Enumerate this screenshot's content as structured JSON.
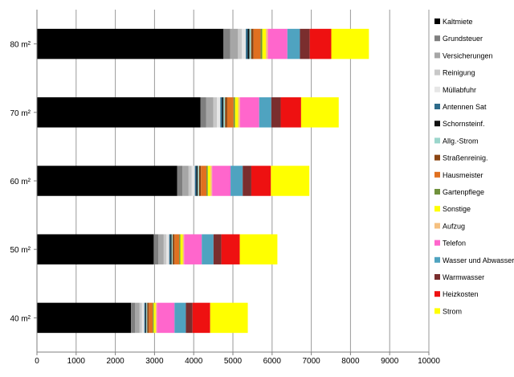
{
  "chart_data": {
    "type": "bar",
    "orientation": "horizontal",
    "stacked": true,
    "title": "",
    "xlabel": "",
    "ylabel": "",
    "xlim": [
      0,
      10000
    ],
    "x_ticks": [
      "0",
      "1000",
      "2000",
      "3000",
      "4000",
      "5000",
      "6000",
      "7000",
      "8000",
      "9000",
      "10000"
    ],
    "x_tick_values": [
      0,
      1000,
      2000,
      3000,
      4000,
      5000,
      6000,
      7000,
      8000,
      9000,
      10000
    ],
    "grid": "vertical",
    "legend_position": "right",
    "categories": [
      "40 m²",
      "50 m²",
      "60 m²",
      "70 m²",
      "80 m²"
    ],
    "series": [
      {
        "name": "Kaltmiete",
        "color": "#000000",
        "values": [
          2400,
          2980,
          3580,
          4170,
          4760
        ]
      },
      {
        "name": "Grundsteuer",
        "color": "#7f7f7f",
        "values": [
          100,
          115,
          130,
          150,
          170
        ]
      },
      {
        "name": "Versicherungen",
        "color": "#a6a6a6",
        "values": [
          120,
          140,
          160,
          180,
          200
        ]
      },
      {
        "name": "Reinigung",
        "color": "#c8c8c8",
        "values": [
          60,
          70,
          80,
          90,
          100
        ]
      },
      {
        "name": "Müllabfuhr",
        "color": "#e6e6e6",
        "values": [
          60,
          70,
          80,
          90,
          100
        ]
      },
      {
        "name": "Antennen Sat",
        "color": "#2e6b8a",
        "values": [
          30,
          35,
          40,
          45,
          50
        ]
      },
      {
        "name": "Schornsteinf.",
        "color": "#101010",
        "values": [
          20,
          25,
          30,
          35,
          40
        ]
      },
      {
        "name": "Allg.-Strom",
        "color": "#9bd6cc",
        "values": [
          25,
          30,
          35,
          40,
          45
        ]
      },
      {
        "name": "Straßenreinig.",
        "color": "#8b4513",
        "values": [
          40,
          45,
          50,
          55,
          60
        ]
      },
      {
        "name": "Hausmeister",
        "color": "#e07020",
        "values": [
          100,
          120,
          140,
          160,
          180
        ]
      },
      {
        "name": "Gartenpflege",
        "color": "#70913c",
        "values": [
          25,
          30,
          35,
          40,
          45
        ]
      },
      {
        "name": "Sonstige",
        "color": "#ffff00",
        "values": [
          50,
          60,
          70,
          80,
          90
        ]
      },
      {
        "name": "Aufzug",
        "color": "#f5c080",
        "values": [
          30,
          35,
          40,
          45,
          50
        ]
      },
      {
        "name": "Telefon",
        "color": "#ff66cc",
        "values": [
          450,
          450,
          470,
          490,
          500
        ]
      },
      {
        "name": "Wasser und Abwasser",
        "color": "#4fa3c0",
        "values": [
          290,
          300,
          310,
          310,
          320
        ]
      },
      {
        "name": "Warmwasser",
        "color": "#7a2e2e",
        "values": [
          170,
          200,
          220,
          240,
          250
        ]
      },
      {
        "name": "Heizkosten",
        "color": "#ee1111",
        "values": [
          450,
          470,
          500,
          520,
          550
        ]
      },
      {
        "name": "Strom",
        "color": "#ffff00",
        "values": [
          960,
          960,
          980,
          960,
          960
        ]
      }
    ]
  }
}
